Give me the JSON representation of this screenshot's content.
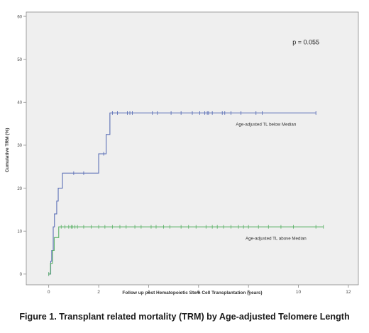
{
  "caption": "Figure 1. Transplant related mortality (TRM) by Age-adjusted Telomere Length",
  "colors": {
    "plot_background": "#efefef",
    "frame": "#8a8a8a",
    "below_median": "#5b6fb6",
    "above_median": "#5fb36a"
  },
  "chart_data": {
    "type": "line",
    "subtype": "step (Kaplan-Meier style cumulative incidence)",
    "title": "",
    "xlabel": "Follow up post Hematopoietic Stem Cell Transplantation (years)",
    "ylabel": "Cumulative TRM (%)",
    "xlim": [
      -0.9,
      12.4
    ],
    "ylim": [
      -2.5,
      61
    ],
    "x_ticks": [
      0,
      2,
      4,
      6,
      8,
      10,
      12
    ],
    "y_ticks": [
      0,
      10,
      20,
      30,
      40,
      50,
      60
    ],
    "grid": false,
    "annotations": [
      {
        "text": "p = 0.055",
        "x": 10.3,
        "y": 53.5
      }
    ],
    "series": [
      {
        "name": "Age-adjusted TL below Median",
        "label_position": {
          "x": 8.7,
          "y": 34.5
        },
        "color_key": "below_median",
        "steps": [
          [
            0,
            0
          ],
          [
            0.08,
            3
          ],
          [
            0.12,
            5.5
          ],
          [
            0.18,
            11
          ],
          [
            0.23,
            14
          ],
          [
            0.32,
            17
          ],
          [
            0.38,
            20
          ],
          [
            0.55,
            23.5
          ],
          [
            2.0,
            28
          ],
          [
            2.3,
            32.5
          ],
          [
            2.45,
            37.5
          ],
          [
            10.7,
            37.5
          ]
        ],
        "censored_x": [
          1.0,
          1.4,
          2.2,
          2.55,
          2.75,
          3.15,
          3.25,
          3.35,
          4.15,
          4.35,
          4.9,
          5.3,
          5.75,
          6.05,
          6.25,
          6.35,
          6.4,
          6.55,
          6.95,
          7.05,
          7.3,
          7.7,
          8.3,
          8.55,
          10.7
        ]
      },
      {
        "name": "Age-adjusted TL above Median",
        "label_position": {
          "x": 9.1,
          "y": 8
        },
        "color_key": "above_median",
        "steps": [
          [
            0,
            0
          ],
          [
            0.07,
            2.5
          ],
          [
            0.15,
            5.5
          ],
          [
            0.22,
            8.5
          ],
          [
            0.4,
            11
          ],
          [
            11.0,
            11
          ]
        ],
        "censored_x": [
          0.5,
          0.65,
          0.8,
          0.9,
          0.95,
          1.05,
          1.15,
          1.4,
          1.7,
          2.0,
          2.25,
          2.55,
          2.85,
          3.1,
          3.45,
          3.7,
          4.1,
          4.3,
          4.6,
          4.85,
          5.3,
          5.6,
          5.9,
          6.3,
          6.55,
          6.75,
          7.0,
          7.3,
          7.6,
          7.8,
          8.0,
          8.4,
          8.8,
          9.3,
          9.8,
          10.7,
          11.0
        ]
      }
    ]
  }
}
